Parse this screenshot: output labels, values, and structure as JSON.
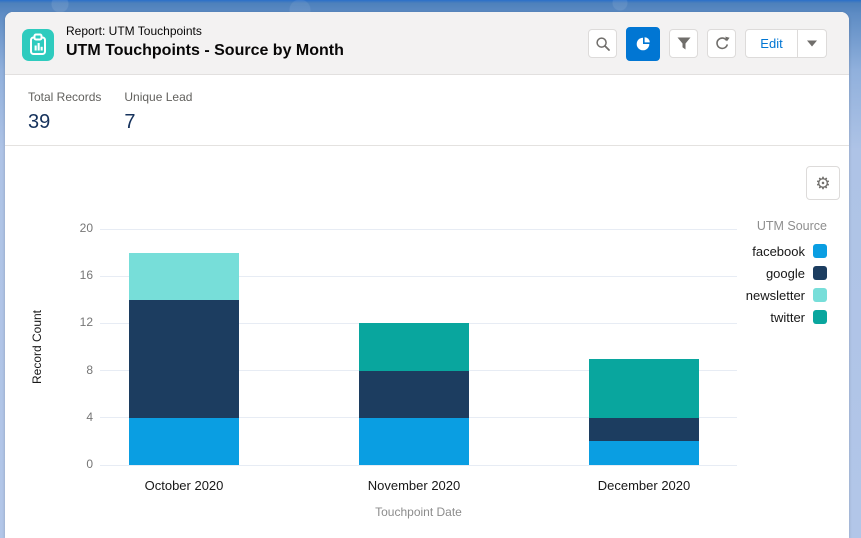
{
  "colors": {
    "brand_teal": "#2ecbbe",
    "accent_blue": "#0176d3",
    "value_navy": "#16325c"
  },
  "header": {
    "object_label": "Report: UTM Touchpoints",
    "title": "UTM Touchpoints - Source by Month",
    "actions": {
      "edit_label": "Edit"
    }
  },
  "metrics": [
    {
      "label": "Total Records",
      "value": "39"
    },
    {
      "label": "Unique Lead",
      "value": "7"
    }
  ],
  "chart_data": {
    "type": "bar",
    "stacked": true,
    "categories": [
      "October 2020",
      "November 2020",
      "December 2020"
    ],
    "series": [
      {
        "name": "facebook",
        "color": "#0a9ee2",
        "values": [
          4,
          4,
          2
        ]
      },
      {
        "name": "google",
        "color": "#1c3d60",
        "values": [
          10,
          4,
          2
        ]
      },
      {
        "name": "newsletter",
        "color": "#77ded9",
        "values": [
          4,
          0,
          0
        ]
      },
      {
        "name": "twitter",
        "color": "#09a69e",
        "values": [
          0,
          4,
          5
        ]
      }
    ],
    "xlabel": "Touchpoint Date",
    "ylabel": "Record Count",
    "ylim": [
      0,
      20
    ],
    "ytick_step": 4,
    "legend_title": "UTM Source",
    "legend_position": "right",
    "grid": true
  }
}
